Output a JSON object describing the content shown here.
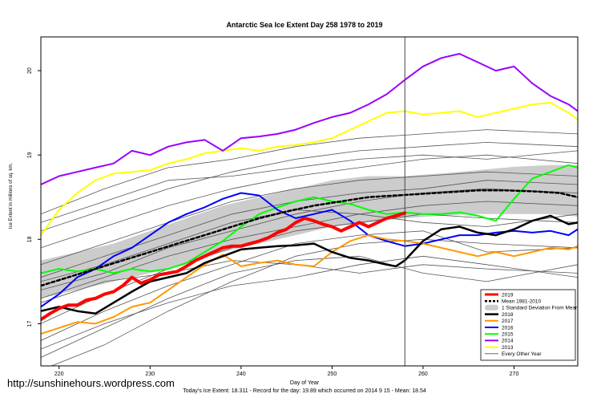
{
  "title": "Antarctic Sea Ice Extent Day 258 1978 to 2019",
  "xlabel": "Day of Year",
  "ylabel": "Ice Extent in millions of sq. km.",
  "subtitle": "Today's Ice Extent: 18.311  - Record for the day: 19.89 which occurred on 2014 9 15  - Mean: 18.54",
  "watermark": "http://sunshinehours.wordpress.com",
  "chart_data": {
    "type": "line",
    "xlim": [
      218,
      277
    ],
    "ylim": [
      16.5,
      20.4
    ],
    "xticks": [
      220,
      230,
      240,
      250,
      260,
      270
    ],
    "yticks": [
      17,
      18,
      19,
      20
    ],
    "grid": false,
    "legend_position": "bottom-right",
    "vline_x": 258,
    "band": {
      "name": "1 Standard Deviation From Mean",
      "x": [
        218,
        222,
        226,
        230,
        234,
        238,
        242,
        246,
        250,
        254,
        258,
        262,
        266,
        270,
        274,
        277
      ],
      "upper": [
        17.75,
        17.85,
        17.95,
        18.1,
        18.25,
        18.4,
        18.5,
        18.6,
        18.7,
        18.75,
        18.75,
        18.78,
        18.82,
        18.86,
        18.88,
        18.88
      ],
      "lower": [
        17.3,
        17.4,
        17.5,
        17.6,
        17.7,
        17.85,
        17.95,
        18.05,
        18.15,
        18.2,
        18.25,
        18.28,
        18.3,
        18.3,
        18.3,
        18.27
      ],
      "color": "#cccccc"
    },
    "series": [
      {
        "name": "2019",
        "color": "#ff0000",
        "width": 4,
        "dash": "",
        "x": [
          218,
          219,
          220,
          221,
          222,
          223,
          224,
          225,
          226,
          227,
          228,
          229,
          230,
          231,
          232,
          233,
          234,
          235,
          236,
          237,
          238,
          239,
          240,
          241,
          242,
          243,
          244,
          245,
          246,
          247,
          248,
          249,
          250,
          251,
          252,
          253,
          254,
          255,
          256,
          257,
          258
        ],
        "y": [
          17.05,
          17.12,
          17.18,
          17.22,
          17.22,
          17.28,
          17.3,
          17.35,
          17.38,
          17.45,
          17.55,
          17.48,
          17.52,
          17.58,
          17.6,
          17.62,
          17.68,
          17.75,
          17.8,
          17.85,
          17.9,
          17.92,
          17.92,
          17.95,
          17.98,
          18.02,
          18.08,
          18.12,
          18.2,
          18.25,
          18.22,
          18.18,
          18.15,
          18.1,
          18.15,
          18.2,
          18.15,
          18.2,
          18.25,
          18.28,
          18.311
        ]
      },
      {
        "name": "Mean 1981-2010",
        "color": "#000000",
        "width": 2.5,
        "dash": "4 3",
        "x": [
          218,
          221,
          224,
          227,
          230,
          233,
          236,
          239,
          242,
          245,
          248,
          251,
          254,
          257,
          260,
          263,
          266,
          269,
          272,
          275,
          277
        ],
        "y": [
          17.45,
          17.55,
          17.65,
          17.75,
          17.85,
          17.95,
          18.05,
          18.15,
          18.25,
          18.33,
          18.4,
          18.45,
          18.5,
          18.52,
          18.54,
          18.56,
          18.58,
          18.58,
          18.57,
          18.55,
          18.5
        ]
      },
      {
        "name": "2018",
        "color": "#000000",
        "width": 2.5,
        "dash": "",
        "x": [
          218,
          220,
          222,
          224,
          226,
          228,
          230,
          232,
          234,
          236,
          238,
          240,
          242,
          244,
          246,
          248,
          250,
          252,
          254,
          256,
          257,
          258,
          260,
          262,
          264,
          266,
          268,
          270,
          272,
          274,
          276,
          277
        ],
        "y": [
          17.15,
          17.2,
          17.15,
          17.12,
          17.25,
          17.38,
          17.5,
          17.55,
          17.6,
          17.72,
          17.8,
          17.88,
          17.9,
          17.92,
          17.93,
          17.95,
          17.85,
          17.78,
          17.75,
          17.7,
          17.68,
          17.75,
          17.98,
          18.12,
          18.15,
          18.08,
          18.05,
          18.12,
          18.22,
          18.28,
          18.18,
          18.2
        ]
      },
      {
        "name": "2017",
        "color": "#ff9900",
        "width": 2,
        "dash": "",
        "x": [
          218,
          220,
          222,
          224,
          226,
          228,
          230,
          232,
          234,
          236,
          238,
          240,
          242,
          244,
          246,
          248,
          250,
          252,
          254,
          256,
          258,
          260,
          262,
          264,
          266,
          268,
          270,
          272,
          274,
          276,
          277
        ],
        "y": [
          16.88,
          16.95,
          17.02,
          17.0,
          17.08,
          17.2,
          17.25,
          17.4,
          17.55,
          17.7,
          17.82,
          17.68,
          17.72,
          17.75,
          17.7,
          17.68,
          17.85,
          17.98,
          18.05,
          18.0,
          17.98,
          17.95,
          17.9,
          17.85,
          17.8,
          17.85,
          17.8,
          17.85,
          17.9,
          17.88,
          17.92
        ]
      },
      {
        "name": "2016",
        "color": "#0000ff",
        "width": 2,
        "dash": "",
        "x": [
          218,
          220,
          222,
          224,
          226,
          228,
          230,
          232,
          234,
          236,
          238,
          240,
          242,
          244,
          246,
          248,
          250,
          252,
          254,
          256,
          258,
          260,
          262,
          264,
          266,
          268,
          270,
          272,
          274,
          276,
          277
        ],
        "y": [
          17.2,
          17.35,
          17.55,
          17.65,
          17.8,
          17.9,
          18.05,
          18.2,
          18.3,
          18.38,
          18.48,
          18.55,
          18.52,
          18.35,
          18.25,
          18.3,
          18.35,
          18.22,
          18.05,
          17.98,
          17.92,
          17.95,
          18.0,
          18.05,
          18.05,
          18.08,
          18.1,
          18.08,
          18.1,
          18.05,
          18.12
        ]
      },
      {
        "name": "2015",
        "color": "#00ff00",
        "width": 2,
        "dash": "",
        "x": [
          218,
          220,
          222,
          224,
          226,
          228,
          230,
          232,
          234,
          236,
          238,
          240,
          242,
          244,
          246,
          248,
          250,
          252,
          254,
          256,
          258,
          260,
          262,
          264,
          266,
          268,
          270,
          272,
          274,
          276,
          277
        ],
        "y": [
          17.6,
          17.65,
          17.62,
          17.65,
          17.6,
          17.65,
          17.62,
          17.65,
          17.72,
          17.85,
          17.98,
          18.15,
          18.3,
          18.38,
          18.45,
          18.5,
          18.45,
          18.42,
          18.35,
          18.3,
          18.32,
          18.3,
          18.3,
          18.32,
          18.28,
          18.22,
          18.48,
          18.72,
          18.8,
          18.88,
          18.85
        ]
      },
      {
        "name": "2014",
        "color": "#9900ff",
        "width": 2,
        "dash": "",
        "x": [
          218,
          220,
          222,
          224,
          226,
          228,
          230,
          232,
          234,
          236,
          238,
          240,
          242,
          244,
          246,
          248,
          250,
          252,
          254,
          256,
          258,
          260,
          262,
          264,
          266,
          268,
          270,
          272,
          274,
          276,
          277
        ],
        "y": [
          18.65,
          18.75,
          18.8,
          18.85,
          18.9,
          19.05,
          19.0,
          19.1,
          19.15,
          19.18,
          19.05,
          19.2,
          19.22,
          19.25,
          19.3,
          19.38,
          19.45,
          19.5,
          19.6,
          19.72,
          19.89,
          20.05,
          20.15,
          20.2,
          20.1,
          20.0,
          20.05,
          19.85,
          19.7,
          19.6,
          19.52
        ]
      },
      {
        "name": "2013",
        "color": "#ffff00",
        "width": 2,
        "dash": "",
        "x": [
          218,
          220,
          222,
          224,
          226,
          228,
          230,
          232,
          234,
          236,
          238,
          240,
          242,
          244,
          246,
          248,
          250,
          252,
          254,
          256,
          258,
          260,
          262,
          264,
          266,
          268,
          270,
          272,
          274,
          276,
          277
        ],
        "y": [
          18.05,
          18.35,
          18.55,
          18.7,
          18.78,
          18.8,
          18.82,
          18.9,
          18.95,
          19.02,
          19.05,
          19.08,
          19.05,
          19.1,
          19.12,
          19.15,
          19.2,
          19.3,
          19.4,
          19.5,
          19.52,
          19.48,
          19.5,
          19.52,
          19.45,
          19.5,
          19.55,
          19.6,
          19.62,
          19.5,
          19.42
        ]
      },
      {
        "name": "Every Other Year",
        "color": "#555555",
        "width": 0.8,
        "dash": "",
        "x": [
          218,
          225,
          232,
          239,
          246,
          253,
          260,
          267,
          277
        ],
        "y": [
          17.3,
          17.55,
          17.8,
          18.0,
          18.15,
          18.3,
          18.4,
          18.45,
          18.4
        ]
      },
      {
        "name": "",
        "color": "#555555",
        "width": 0.8,
        "dash": "",
        "x": [
          218,
          225,
          232,
          239,
          246,
          253,
          260,
          267,
          277
        ],
        "y": [
          16.45,
          16.75,
          17.15,
          17.5,
          17.8,
          17.95,
          18.0,
          17.95,
          17.9
        ]
      },
      {
        "name": "",
        "color": "#555555",
        "width": 0.8,
        "dash": "",
        "x": [
          218,
          225,
          232,
          239,
          246,
          253,
          260,
          267,
          277
        ],
        "y": [
          16.6,
          16.95,
          17.3,
          17.6,
          17.75,
          17.8,
          17.6,
          17.5,
          17.7
        ]
      },
      {
        "name": "",
        "color": "#555555",
        "width": 0.8,
        "dash": "",
        "x": [
          218,
          225,
          232,
          239,
          246,
          253,
          260,
          267,
          277
        ],
        "y": [
          16.8,
          17.15,
          17.45,
          17.7,
          17.95,
          18.05,
          18.1,
          17.85,
          17.9
        ]
      },
      {
        "name": "",
        "color": "#555555",
        "width": 0.8,
        "dash": "",
        "x": [
          218,
          225,
          232,
          239,
          246,
          253,
          260,
          267,
          277
        ],
        "y": [
          17.0,
          17.35,
          17.65,
          17.9,
          18.1,
          18.2,
          18.3,
          18.25,
          18.2
        ]
      },
      {
        "name": "",
        "color": "#555555",
        "width": 0.8,
        "dash": "",
        "x": [
          218,
          225,
          232,
          239,
          246,
          253,
          260,
          267,
          277
        ],
        "y": [
          17.4,
          17.6,
          17.9,
          18.1,
          18.3,
          18.45,
          18.55,
          18.6,
          18.55
        ]
      },
      {
        "name": "",
        "color": "#555555",
        "width": 0.8,
        "dash": "",
        "x": [
          218,
          225,
          232,
          239,
          246,
          253,
          260,
          267,
          277
        ],
        "y": [
          17.55,
          17.8,
          18.05,
          18.3,
          18.45,
          18.55,
          18.6,
          18.7,
          18.65
        ]
      },
      {
        "name": "",
        "color": "#555555",
        "width": 0.8,
        "dash": "",
        "x": [
          218,
          225,
          232,
          239,
          246,
          253,
          260,
          267,
          277
        ],
        "y": [
          17.7,
          17.95,
          18.2,
          18.45,
          18.6,
          18.7,
          18.75,
          18.8,
          18.75
        ]
      },
      {
        "name": "",
        "color": "#555555",
        "width": 0.8,
        "dash": "",
        "x": [
          218,
          225,
          232,
          239,
          246,
          253,
          260,
          267,
          277
        ],
        "y": [
          17.9,
          18.15,
          18.4,
          18.6,
          18.75,
          18.85,
          18.95,
          19.0,
          18.9
        ]
      },
      {
        "name": "",
        "color": "#555555",
        "width": 0.8,
        "dash": "",
        "x": [
          218,
          225,
          232,
          239,
          246,
          253,
          260,
          267,
          277
        ],
        "y": [
          18.1,
          18.35,
          18.6,
          18.8,
          18.95,
          19.05,
          19.1,
          19.15,
          19.1
        ]
      },
      {
        "name": "",
        "color": "#555555",
        "width": 0.8,
        "dash": "",
        "x": [
          218,
          225,
          232,
          239,
          246,
          253,
          260,
          267,
          277
        ],
        "y": [
          18.3,
          18.6,
          18.85,
          18.95,
          19.1,
          19.2,
          19.25,
          19.3,
          19.25
        ]
      },
      {
        "name": "",
        "color": "#555555",
        "width": 0.8,
        "dash": "",
        "x": [
          218,
          225,
          232,
          239,
          246,
          253,
          260,
          267,
          277
        ],
        "y": [
          17.25,
          17.5,
          17.6,
          17.75,
          17.7,
          17.6,
          17.7,
          17.65,
          17.6
        ]
      },
      {
        "name": "",
        "color": "#555555",
        "width": 0.8,
        "dash": "",
        "x": [
          218,
          225,
          232,
          239,
          246,
          253,
          260,
          267,
          277
        ],
        "y": [
          17.5,
          17.7,
          17.95,
          18.2,
          18.35,
          18.3,
          18.2,
          18.15,
          18.3
        ]
      },
      {
        "name": "",
        "color": "#555555",
        "width": 0.8,
        "dash": "",
        "x": [
          218,
          225,
          232,
          239,
          246,
          253,
          260,
          267,
          277
        ],
        "y": [
          18.2,
          18.45,
          18.7,
          18.75,
          18.85,
          18.95,
          19.0,
          18.95,
          19.05
        ]
      },
      {
        "name": "",
        "color": "#555555",
        "width": 0.8,
        "dash": "",
        "x": [
          218,
          225,
          232,
          239,
          246,
          253,
          260,
          267,
          277
        ],
        "y": [
          16.7,
          17.0,
          17.25,
          17.45,
          17.55,
          17.7,
          17.8,
          17.7,
          17.55
        ]
      }
    ]
  }
}
